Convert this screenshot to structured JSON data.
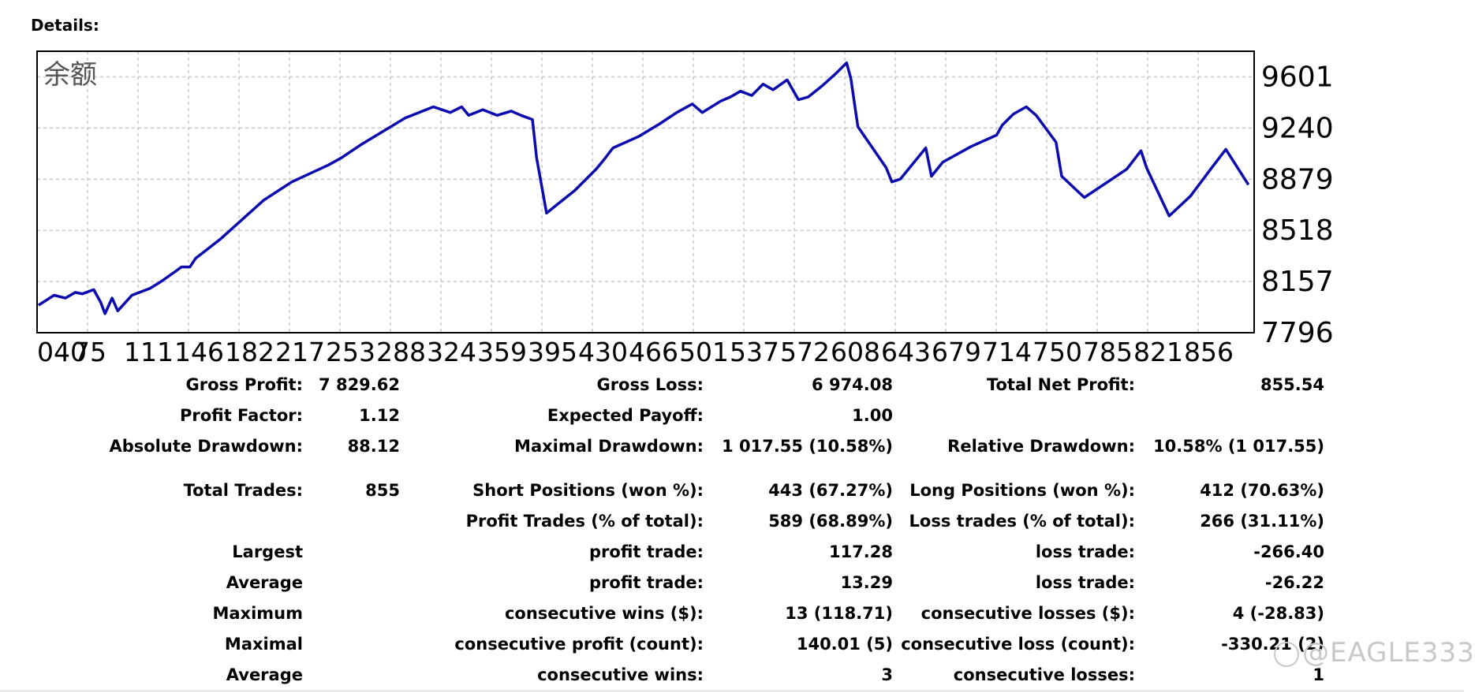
{
  "section_title": "Details:",
  "chart_data": {
    "type": "line",
    "title": "余额",
    "ylim": [
      7796,
      9782
    ],
    "y_ticks": [
      "9601",
      "9240",
      "8879",
      "8518",
      "8157",
      "7796"
    ],
    "x_ticks": [
      "040",
      "75",
      "111",
      "146",
      "182",
      "217",
      "253",
      "288",
      "324",
      "359",
      "395",
      "430",
      "466",
      "501",
      "537",
      "572",
      "608",
      "643",
      "679",
      "714",
      "750",
      "785",
      "821",
      "856"
    ],
    "grid": true,
    "line_color": "#0b0bb0",
    "series": [
      {
        "x": [
          1,
          12,
          20,
          27,
          32,
          40,
          45,
          48,
          53,
          57,
          67,
          80,
          88,
          98,
          102,
          108,
          112,
          130,
          160,
          180,
          206,
          215,
          230,
          260,
          280,
          292,
          300,
          305,
          315,
          325,
          335,
          342,
          350,
          353,
          360,
          370,
          380,
          395,
          400,
          407,
          425,
          440,
          452,
          463,
          470,
          475,
          483,
          490,
          497,
          505,
          513,
          520,
          530,
          538,
          545,
          555,
          565,
          572,
          575,
          580,
          600,
          604,
          610,
          628,
          632,
          640,
          660,
          678,
          682,
          690,
          699,
          706,
          720,
          724,
          740,
          770,
          780,
          784,
          800,
          815,
          830,
          840,
          856
        ],
        "y": [
          7990,
          8060,
          8040,
          8080,
          8070,
          8100,
          8010,
          7930,
          8040,
          7950,
          8060,
          8110,
          8160,
          8230,
          8260,
          8260,
          8320,
          8460,
          8730,
          8860,
          8980,
          9030,
          9130,
          9310,
          9390,
          9350,
          9390,
          9330,
          9370,
          9330,
          9360,
          9330,
          9300,
          9030,
          8640,
          8720,
          8800,
          8950,
          9010,
          9100,
          9180,
          9270,
          9350,
          9410,
          9350,
          9380,
          9430,
          9460,
          9500,
          9470,
          9550,
          9510,
          9580,
          9440,
          9460,
          9540,
          9630,
          9700,
          9590,
          9250,
          8960,
          8860,
          8880,
          9100,
          8900,
          9000,
          9110,
          9190,
          9260,
          9340,
          9390,
          9330,
          9140,
          8900,
          8750,
          8950,
          9080,
          8960,
          8620,
          8760,
          8960,
          9090,
          8840
        ]
      }
    ]
  },
  "stats": {
    "gross_profit_label": "Gross Profit:",
    "gross_profit": "7 829.62",
    "gross_loss_label": "Gross Loss:",
    "gross_loss": "6 974.08",
    "total_net_profit_label": "Total Net Profit:",
    "total_net_profit": "855.54",
    "profit_factor_label": "Profit Factor:",
    "profit_factor": "1.12",
    "expected_payoff_label": "Expected Payoff:",
    "expected_payoff": "1.00",
    "absolute_drawdown_label": "Absolute Drawdown:",
    "absolute_drawdown": "88.12",
    "maximal_drawdown_label": "Maximal Drawdown:",
    "maximal_drawdown": "1 017.55 (10.58%)",
    "relative_drawdown_label": "Relative Drawdown:",
    "relative_drawdown": "10.58% (1 017.55)",
    "total_trades_label": "Total Trades:",
    "total_trades": "855",
    "short_positions_label": "Short Positions (won %):",
    "short_positions": "443 (67.27%)",
    "long_positions_label": "Long Positions (won %):",
    "long_positions": "412 (70.63%)",
    "profit_trades_label": "Profit Trades (% of total):",
    "profit_trades": "589 (68.89%)",
    "loss_trades_label": "Loss trades (% of total):",
    "loss_trades": "266 (31.11%)",
    "largest_label": "Largest",
    "largest_profit_label": "profit trade:",
    "largest_profit": "117.28",
    "largest_loss_label": "loss trade:",
    "largest_loss": "-266.40",
    "average_label": "Average",
    "average_profit_label": "profit trade:",
    "average_profit": "13.29",
    "average_loss_label": "loss trade:",
    "average_loss": "-26.22",
    "maximum_label": "Maximum",
    "max_cons_wins_label": "consecutive wins ($):",
    "max_cons_wins": "13 (118.71)",
    "max_cons_losses_label": "consecutive losses ($):",
    "max_cons_losses": "4 (-28.83)",
    "maximal_label": "Maximal",
    "maximal_cons_profit_label": "consecutive profit (count):",
    "maximal_cons_profit": "140.01 (5)",
    "maximal_cons_loss_label": "consecutive loss (count):",
    "maximal_cons_loss": "-330.21 (2)",
    "average2_label": "Average",
    "avg_cons_wins_label": "consecutive wins:",
    "avg_cons_wins": "3",
    "avg_cons_losses_label": "consecutive losses:",
    "avg_cons_losses": "1"
  },
  "watermark": "@EAGLE333"
}
